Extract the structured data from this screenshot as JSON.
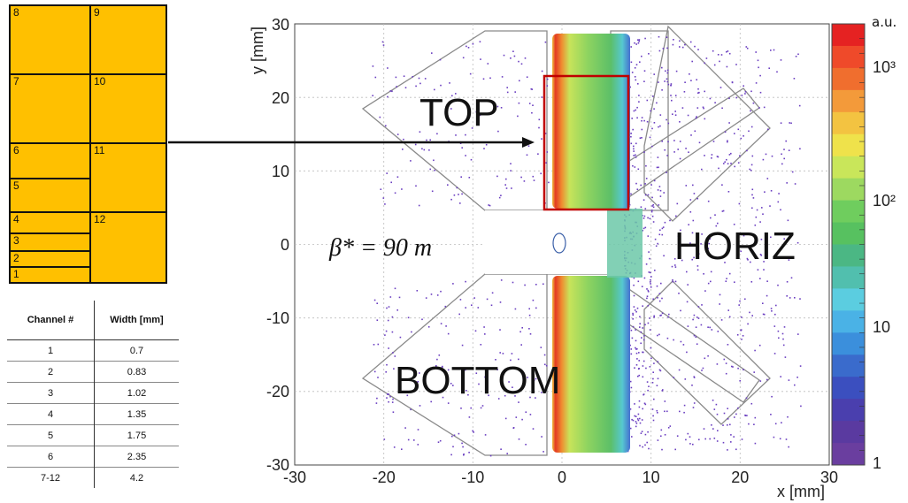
{
  "channel_grid": {
    "left_column": [
      "8",
      "7",
      "6",
      "5",
      "4",
      "3",
      "2",
      "1"
    ],
    "right_column": [
      "9",
      "10",
      "11",
      "12"
    ],
    "fill_color": "#FFC000"
  },
  "channel_table": {
    "headers": [
      "Channel #",
      "Width [mm]"
    ],
    "rows": [
      {
        "channel": "1",
        "width": "0.7"
      },
      {
        "channel": "2",
        "width": "0.83"
      },
      {
        "channel": "3",
        "width": "1.02"
      },
      {
        "channel": "4",
        "width": "1.35"
      },
      {
        "channel": "5",
        "width": "1.75"
      },
      {
        "channel": "6",
        "width": "2.35"
      },
      {
        "channel": "7-12",
        "width": "4.2"
      }
    ]
  },
  "plot": {
    "ylabel": "y [mm]",
    "xlabel": "x [mm]",
    "x_ticks": [
      "-30",
      "-20",
      "-10",
      "0",
      "10",
      "20",
      "30"
    ],
    "y_ticks": [
      "30",
      "20",
      "10",
      "0",
      "-10",
      "-20",
      "-30"
    ],
    "xlim": [
      -30,
      30
    ],
    "ylim": [
      -30,
      30
    ],
    "region_labels": {
      "top": "TOP",
      "bottom": "BOTTOM",
      "horiz": "HORIZ"
    },
    "beta_label": "β* = 90 m",
    "highlight_color": "#c00000"
  },
  "colorbar": {
    "unit": "a.u.",
    "scale": "log",
    "tick_labels": [
      "10³",
      "10²",
      "10",
      "1"
    ],
    "colors": [
      "#e52222",
      "#ef4a2a",
      "#f06e2e",
      "#f39a3a",
      "#f3c341",
      "#efe24b",
      "#c9e65a",
      "#9dd960",
      "#6fcd5e",
      "#57c160",
      "#4bb784",
      "#51bfae",
      "#5bcde0",
      "#4ab2e6",
      "#3b8fdc",
      "#3a6bcc",
      "#3b4fbf",
      "#4a3fae",
      "#5a3aa0",
      "#6a3e9f"
    ]
  }
}
